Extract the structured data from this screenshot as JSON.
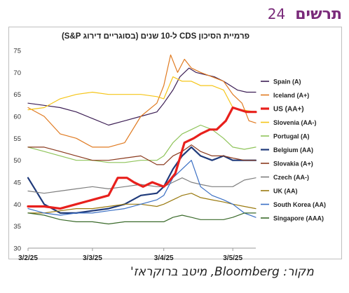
{
  "header": {
    "title": "תרשים",
    "number": "24"
  },
  "source": "מקור: Bloomberg, מיטב ברוקראז'",
  "chart_data": {
    "type": "line",
    "title": "פרמיית הסיכון CDS ל-10 שנים (בסוגריים דירוג S&P)",
    "xlabel": "",
    "ylabel": "",
    "ylim": [
      30,
      75
    ],
    "yticks": [
      30,
      35,
      40,
      45,
      50,
      55,
      60,
      65,
      70,
      75
    ],
    "xlim": [
      "2025-02-03",
      "2025-05-13"
    ],
    "xticks": [
      "2025-02-03",
      "2025-03-03",
      "2025-04-03",
      "2025-05-03"
    ],
    "xtick_labels": [
      "3/2/25",
      "3/3/25",
      "3/4/25",
      "3/5/25"
    ],
    "grid": false,
    "legend_position": "right",
    "series": [
      {
        "name": "Spain (A)",
        "color": "#3d1f55",
        "width": 1.2,
        "x": [
          "2025-02-03",
          "2025-02-10",
          "2025-02-17",
          "2025-02-24",
          "2025-03-03",
          "2025-03-10",
          "2025-03-17",
          "2025-03-24",
          "2025-03-31",
          "2025-04-03",
          "2025-04-07",
          "2025-04-10",
          "2025-04-14",
          "2025-04-17",
          "2025-04-21",
          "2025-04-25",
          "2025-04-29",
          "2025-05-05",
          "2025-05-09",
          "2025-05-13"
        ],
        "y": [
          63,
          62.5,
          62,
          61,
          59.5,
          58,
          59,
          60,
          61,
          63,
          66,
          69,
          71,
          70,
          69.5,
          69,
          68,
          66,
          65.5,
          65.5
        ]
      },
      {
        "name": "Iceland (A+)",
        "color": "#e07a20",
        "width": 1.2,
        "x": [
          "2025-02-03",
          "2025-02-10",
          "2025-02-17",
          "2025-02-24",
          "2025-03-03",
          "2025-03-10",
          "2025-03-17",
          "2025-03-24",
          "2025-03-31",
          "2025-04-03",
          "2025-04-06",
          "2025-04-09",
          "2025-04-12",
          "2025-04-15",
          "2025-04-19",
          "2025-04-24",
          "2025-04-29",
          "2025-05-03",
          "2025-05-07",
          "2025-05-10",
          "2025-05-13"
        ],
        "y": [
          62,
          60,
          56,
          55,
          53,
          53,
          54,
          60,
          63,
          67,
          74,
          70,
          73,
          71,
          70,
          69,
          68,
          65,
          63,
          59,
          58.5
        ]
      },
      {
        "name": "US (AA+)",
        "color": "#e8201c",
        "width": 3.2,
        "x": [
          "2025-02-03",
          "2025-02-10",
          "2025-02-17",
          "2025-02-24",
          "2025-03-03",
          "2025-03-10",
          "2025-03-14",
          "2025-03-18",
          "2025-03-21",
          "2025-03-25",
          "2025-03-29",
          "2025-04-03",
          "2025-04-05",
          "2025-04-08",
          "2025-04-12",
          "2025-04-16",
          "2025-04-19",
          "2025-04-23",
          "2025-04-26",
          "2025-04-30",
          "2025-05-03",
          "2025-05-06",
          "2025-05-09",
          "2025-05-13"
        ],
        "y": [
          39.5,
          39.5,
          39,
          40,
          41,
          42,
          46,
          46,
          45,
          44,
          45,
          44,
          45,
          47,
          54,
          55,
          56,
          57,
          57,
          59,
          62,
          61.5,
          61,
          61
        ]
      },
      {
        "name": "Slovenia (AA-)",
        "color": "#f5c518",
        "width": 1.2,
        "x": [
          "2025-02-03",
          "2025-02-10",
          "2025-02-17",
          "2025-02-24",
          "2025-03-03",
          "2025-03-10",
          "2025-03-17",
          "2025-03-24",
          "2025-03-31",
          "2025-04-03",
          "2025-04-07",
          "2025-04-11",
          "2025-04-15",
          "2025-04-19",
          "2025-04-24",
          "2025-04-29",
          "2025-05-03",
          "2025-05-07",
          "2025-05-13"
        ],
        "y": [
          61.5,
          62,
          64,
          65,
          65.5,
          65,
          65,
          65,
          64.5,
          64,
          69,
          68,
          68,
          67,
          67,
          66,
          62,
          61.5,
          61
        ]
      },
      {
        "name": "Portugal (A)",
        "color": "#8fc45a",
        "width": 1.2,
        "x": [
          "2025-02-03",
          "2025-02-10",
          "2025-02-17",
          "2025-02-24",
          "2025-03-03",
          "2025-03-10",
          "2025-03-17",
          "2025-03-24",
          "2025-03-31",
          "2025-04-03",
          "2025-04-07",
          "2025-04-11",
          "2025-04-15",
          "2025-04-19",
          "2025-04-24",
          "2025-04-29",
          "2025-05-03",
          "2025-05-08",
          "2025-05-13"
        ],
        "y": [
          53,
          52,
          51,
          50,
          50,
          49.5,
          49.5,
          50,
          50,
          51,
          54,
          56,
          57,
          58,
          57,
          55,
          53,
          52.5,
          53
        ]
      },
      {
        "name": "Belgium (AA)",
        "color": "#1f3a7a",
        "width": 2.2,
        "x": [
          "2025-02-03",
          "2025-02-10",
          "2025-02-17",
          "2025-02-24",
          "2025-03-03",
          "2025-03-10",
          "2025-03-17",
          "2025-03-24",
          "2025-03-31",
          "2025-04-03",
          "2025-04-07",
          "2025-04-11",
          "2025-04-15",
          "2025-04-19",
          "2025-04-24",
          "2025-04-29",
          "2025-05-03",
          "2025-05-08",
          "2025-05-13"
        ],
        "y": [
          46,
          40,
          38,
          38,
          38.5,
          39,
          40,
          42,
          42.5,
          44,
          48,
          51,
          53,
          51,
          50,
          51,
          50,
          50,
          50
        ]
      },
      {
        "name": "Slovakia (A+)",
        "color": "#8a3a1e",
        "width": 1.2,
        "x": [
          "2025-02-03",
          "2025-02-10",
          "2025-02-17",
          "2025-02-24",
          "2025-03-03",
          "2025-03-10",
          "2025-03-17",
          "2025-03-24",
          "2025-03-31",
          "2025-04-03",
          "2025-04-07",
          "2025-04-11",
          "2025-04-15",
          "2025-04-19",
          "2025-04-24",
          "2025-04-29",
          "2025-05-03",
          "2025-05-08",
          "2025-05-13"
        ],
        "y": [
          53,
          53,
          52,
          51,
          50,
          50,
          50.5,
          51,
          49,
          49,
          51,
          52,
          53.5,
          52,
          51,
          51,
          50.5,
          50,
          50
        ]
      },
      {
        "name": "Czech (AA-)",
        "color": "#7f7f7f",
        "width": 1.2,
        "x": [
          "2025-02-03",
          "2025-02-10",
          "2025-02-17",
          "2025-02-24",
          "2025-03-03",
          "2025-03-10",
          "2025-03-17",
          "2025-03-24",
          "2025-03-31",
          "2025-04-03",
          "2025-04-07",
          "2025-04-11",
          "2025-04-15",
          "2025-04-19",
          "2025-04-24",
          "2025-04-29",
          "2025-05-03",
          "2025-05-08",
          "2025-05-13"
        ],
        "y": [
          43,
          42.5,
          43,
          43.5,
          44,
          43.5,
          44,
          44.5,
          44,
          44,
          45,
          46,
          45,
          44.5,
          44,
          44,
          44,
          45.5,
          46
        ]
      },
      {
        "name": "UK (AA)",
        "color": "#9a7a10",
        "width": 1.2,
        "x": [
          "2025-02-03",
          "2025-02-10",
          "2025-02-17",
          "2025-02-24",
          "2025-03-03",
          "2025-03-10",
          "2025-03-17",
          "2025-03-24",
          "2025-03-31",
          "2025-04-03",
          "2025-04-07",
          "2025-04-11",
          "2025-04-15",
          "2025-04-19",
          "2025-04-24",
          "2025-04-29",
          "2025-05-03",
          "2025-05-08",
          "2025-05-13"
        ],
        "y": [
          38,
          38,
          38.5,
          39,
          39,
          39.5,
          40,
          40,
          39.5,
          40,
          41,
          42,
          42.5,
          41.5,
          41,
          40.5,
          40,
          39.5,
          39
        ]
      },
      {
        "name": "South Korea (AA)",
        "color": "#3a6fc4",
        "width": 1.2,
        "x": [
          "2025-02-03",
          "2025-02-10",
          "2025-02-17",
          "2025-02-24",
          "2025-03-03",
          "2025-03-10",
          "2025-03-17",
          "2025-03-24",
          "2025-03-31",
          "2025-04-03",
          "2025-04-07",
          "2025-04-11",
          "2025-04-15",
          "2025-04-19",
          "2025-04-24",
          "2025-04-29",
          "2025-05-03",
          "2025-05-08",
          "2025-05-13"
        ],
        "y": [
          39,
          38,
          37.5,
          38,
          38,
          38.5,
          39,
          40,
          41,
          42,
          46,
          48,
          50,
          44,
          42,
          41,
          40,
          38,
          37
        ]
      },
      {
        "name": "Singapore (AAA)",
        "color": "#3a6a2a",
        "width": 1.2,
        "x": [
          "2025-02-03",
          "2025-02-10",
          "2025-02-17",
          "2025-02-24",
          "2025-03-03",
          "2025-03-10",
          "2025-03-17",
          "2025-03-24",
          "2025-03-31",
          "2025-04-03",
          "2025-04-07",
          "2025-04-11",
          "2025-04-15",
          "2025-04-19",
          "2025-04-24",
          "2025-04-29",
          "2025-05-03",
          "2025-05-08",
          "2025-05-13"
        ],
        "y": [
          38,
          37.5,
          36.5,
          36,
          36,
          35.5,
          36,
          36,
          36,
          36,
          37,
          37.5,
          37,
          36.5,
          36.5,
          36.5,
          37,
          38,
          38
        ]
      }
    ]
  }
}
